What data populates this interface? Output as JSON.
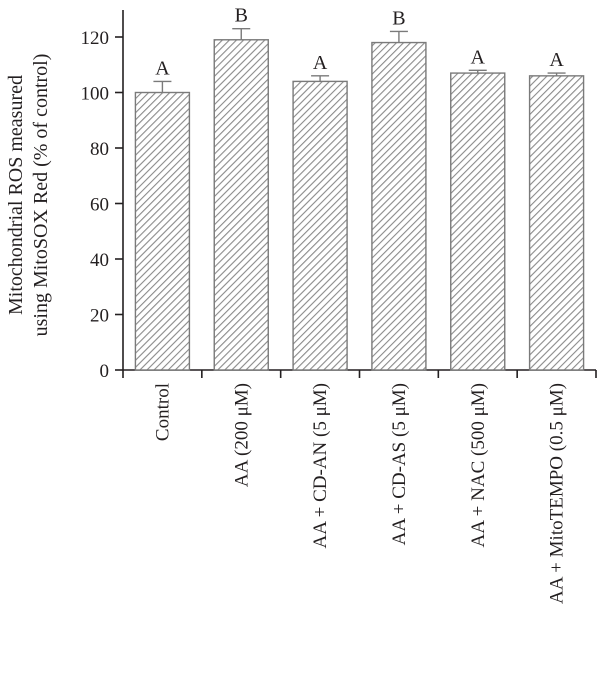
{
  "chart_data": {
    "type": "bar",
    "title": "",
    "xlabel": "",
    "ylabel_lines": [
      "Mitochondrial ROS measured",
      "using MitoSOX Red (% of control)"
    ],
    "ylim": [
      0,
      130
    ],
    "yticks": [
      0,
      20,
      40,
      60,
      80,
      100,
      120
    ],
    "categories": [
      "Control",
      "AA (200 μM)",
      "AA + CD-AN (5 μM)",
      "AA + CD-AS (5 μM)",
      "AA + NAC (500 μM)",
      "AA + MitoTEMPO (0.5 μM)"
    ],
    "values": [
      100,
      119,
      104,
      118,
      107,
      106
    ],
    "errors": [
      4,
      4,
      2,
      4,
      1,
      1
    ],
    "significance": [
      "A",
      "B",
      "A",
      "B",
      "A",
      "A"
    ],
    "bar_fill": "hatched-gray",
    "colors": {
      "bar_stroke": "#7a7a7a",
      "hatch": "#8a8a8a",
      "axis": "#231f20"
    },
    "grid": false,
    "legend": "none"
  }
}
